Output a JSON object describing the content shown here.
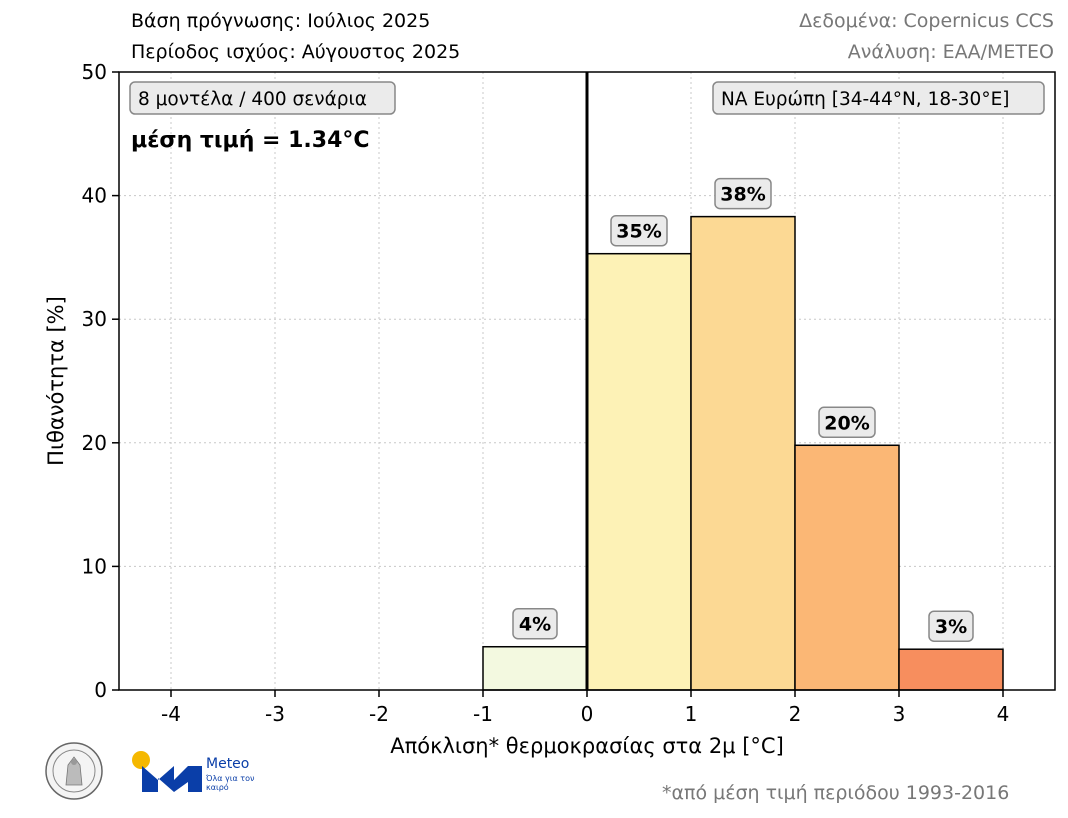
{
  "header": {
    "forecast_base": "Βάση πρόγνωσης: Ιούλιος 2025",
    "validity_period": "Περίοδος ισχύος: Αύγουστος 2025",
    "data_source": "Δεδομένα: Copernicus CCS",
    "analysis": "Ανάλυση: ΕΑΑ/METEO"
  },
  "annotations": {
    "ensemble": "8 μοντέλα / 400 σενάρια",
    "mean_value": "μέση τιμή = 1.34°C",
    "region": "ΝΑ Ευρώπη [34-44°N, 18-30°E]"
  },
  "footnote": "*από μέση τιμή περιόδου 1993-2016",
  "logo": {
    "name": "Meteo",
    "tagline": "Όλα για τον καιρό",
    "icon": "meteo-logo-icon",
    "seal_icon": "noa-seal-icon"
  },
  "chart_data": {
    "type": "bar",
    "xlabel": "Απόκλιση* θερμοκρασίας στα 2μ [°C]",
    "ylabel": "Πιθανότητα [%]",
    "xlim": [
      -4.5,
      4.5
    ],
    "ylim": [
      0,
      50
    ],
    "xticks": [
      -4,
      -3,
      -2,
      -1,
      0,
      1,
      2,
      3,
      4
    ],
    "yticks": [
      0,
      10,
      20,
      30,
      40,
      50
    ],
    "grid": true,
    "reference_line_x": 0,
    "bins": [
      {
        "x0": -1,
        "x1": 0,
        "value": 3.5,
        "label": "4%",
        "color": "#f3f9e0"
      },
      {
        "x0": 0,
        "x1": 1,
        "value": 35.3,
        "label": "35%",
        "color": "#fdf2b6"
      },
      {
        "x0": 1,
        "x1": 2,
        "value": 38.3,
        "label": "38%",
        "color": "#fcd994"
      },
      {
        "x0": 2,
        "x1": 3,
        "value": 19.8,
        "label": "20%",
        "color": "#fbb775"
      },
      {
        "x0": 3,
        "x1": 4,
        "value": 3.3,
        "label": "3%",
        "color": "#f78e5e"
      }
    ]
  }
}
